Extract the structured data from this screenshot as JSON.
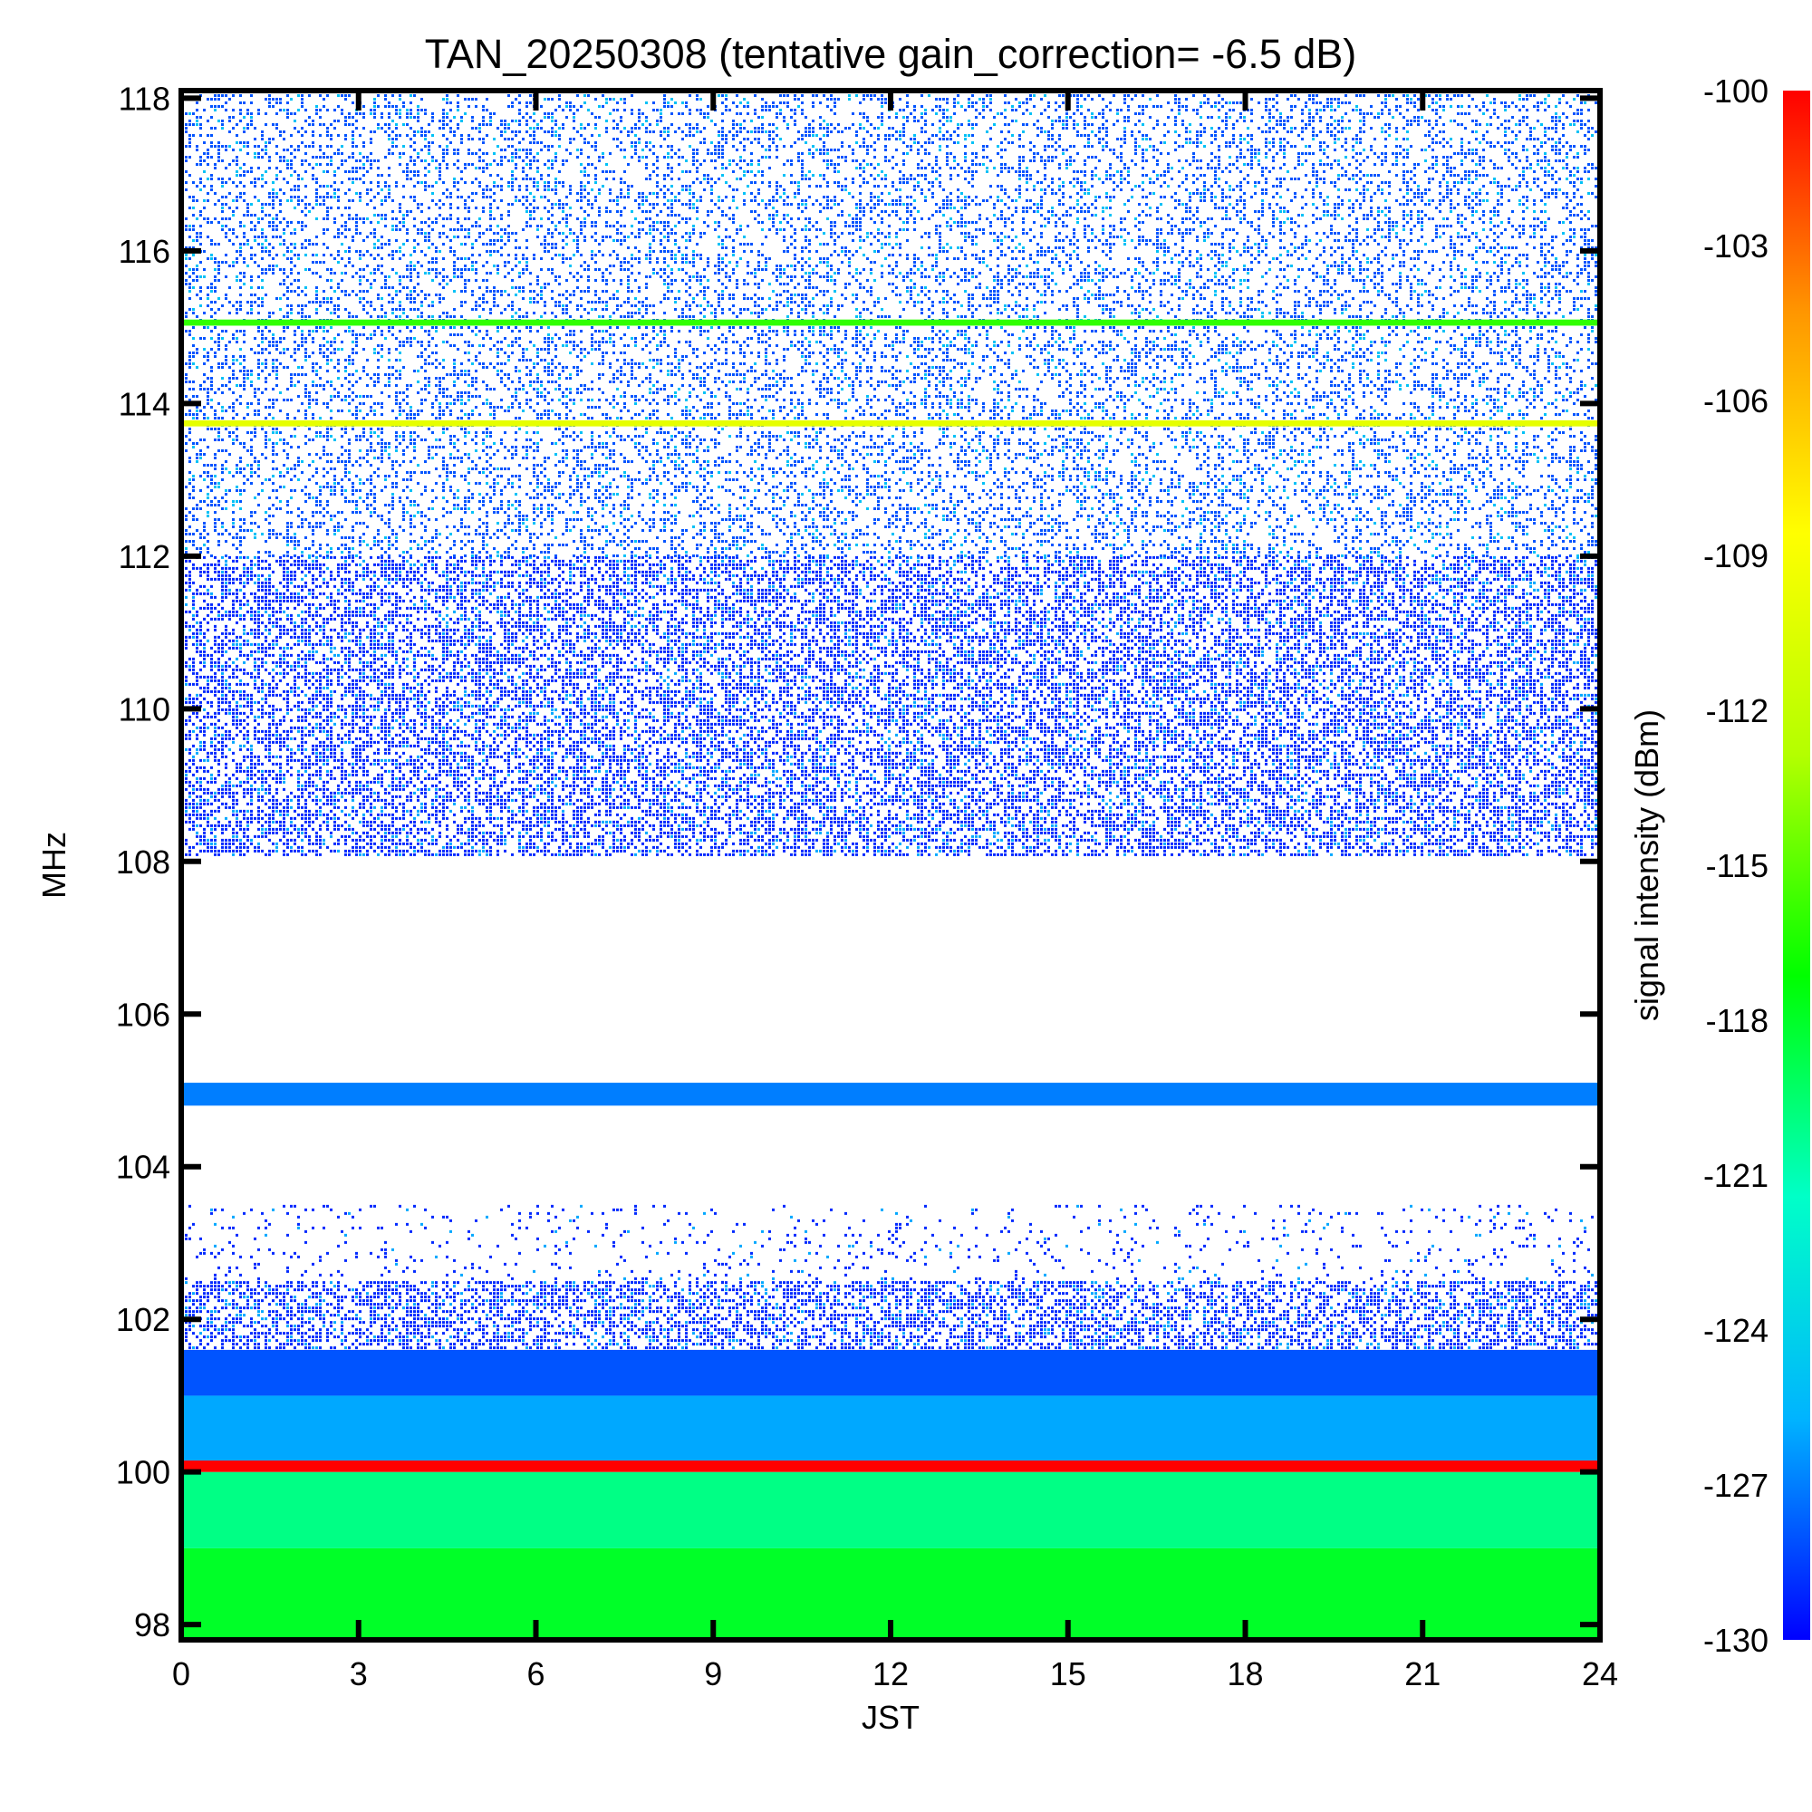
{
  "chart_data": {
    "type": "heatmap",
    "title": "TAN_20250308 (tentative gain_correction= -6.5 dB)",
    "xlabel": "JST",
    "ylabel": "MHz",
    "colorbar_label": "signal intensity (dBm)",
    "xlim": [
      0,
      24
    ],
    "ylim": [
      97.8,
      118.1
    ],
    "x_ticks": [
      "0",
      "3",
      "6",
      "9",
      "12",
      "15",
      "18",
      "21",
      "24"
    ],
    "y_ticks": [
      "98",
      "100",
      "102",
      "104",
      "106",
      "108",
      "110",
      "112",
      "114",
      "116",
      "118"
    ],
    "colorbar_range": [
      -130,
      -100
    ],
    "colorbar_ticks": [
      "-100",
      "-103",
      "-106",
      "-109",
      "-112",
      "-115",
      "-118",
      "-121",
      "-124",
      "-127",
      "-130"
    ],
    "colormap": [
      "#0000ff",
      "#00b4ff",
      "#00ffc8",
      "#00ff00",
      "#b4ff00",
      "#ffff00",
      "#ff9600",
      "#ff0000"
    ],
    "frequency_bands": [
      {
        "from": 97.8,
        "to": 99.0,
        "level_dbm": -118,
        "character": "continuous"
      },
      {
        "from": 99.0,
        "to": 100.0,
        "level_dbm": -120,
        "character": "continuous"
      },
      {
        "from": 100.0,
        "to": 100.15,
        "level_dbm": -100,
        "character": "continuous"
      },
      {
        "from": 100.15,
        "to": 101.0,
        "level_dbm": -126,
        "character": "continuous"
      },
      {
        "from": 101.0,
        "to": 101.6,
        "level_dbm": -128,
        "character": "continuous"
      },
      {
        "from": 101.6,
        "to": 102.5,
        "level_dbm": -129,
        "character": "dense"
      },
      {
        "from": 102.5,
        "to": 103.5,
        "level_dbm": -129,
        "character": "sparse"
      },
      {
        "from": 104.8,
        "to": 105.1,
        "level_dbm": -127,
        "character": "continuous"
      },
      {
        "from": 108.1,
        "to": 112.0,
        "level_dbm": -129,
        "character": "dense"
      },
      {
        "from": 112.0,
        "to": 118.1,
        "level_dbm": -128,
        "character": "moderate"
      },
      {
        "from": 113.7,
        "to": 113.78,
        "level_dbm": -110,
        "character": "continuous"
      },
      {
        "from": 115.02,
        "to": 115.1,
        "level_dbm": -116,
        "character": "continuous"
      }
    ]
  }
}
